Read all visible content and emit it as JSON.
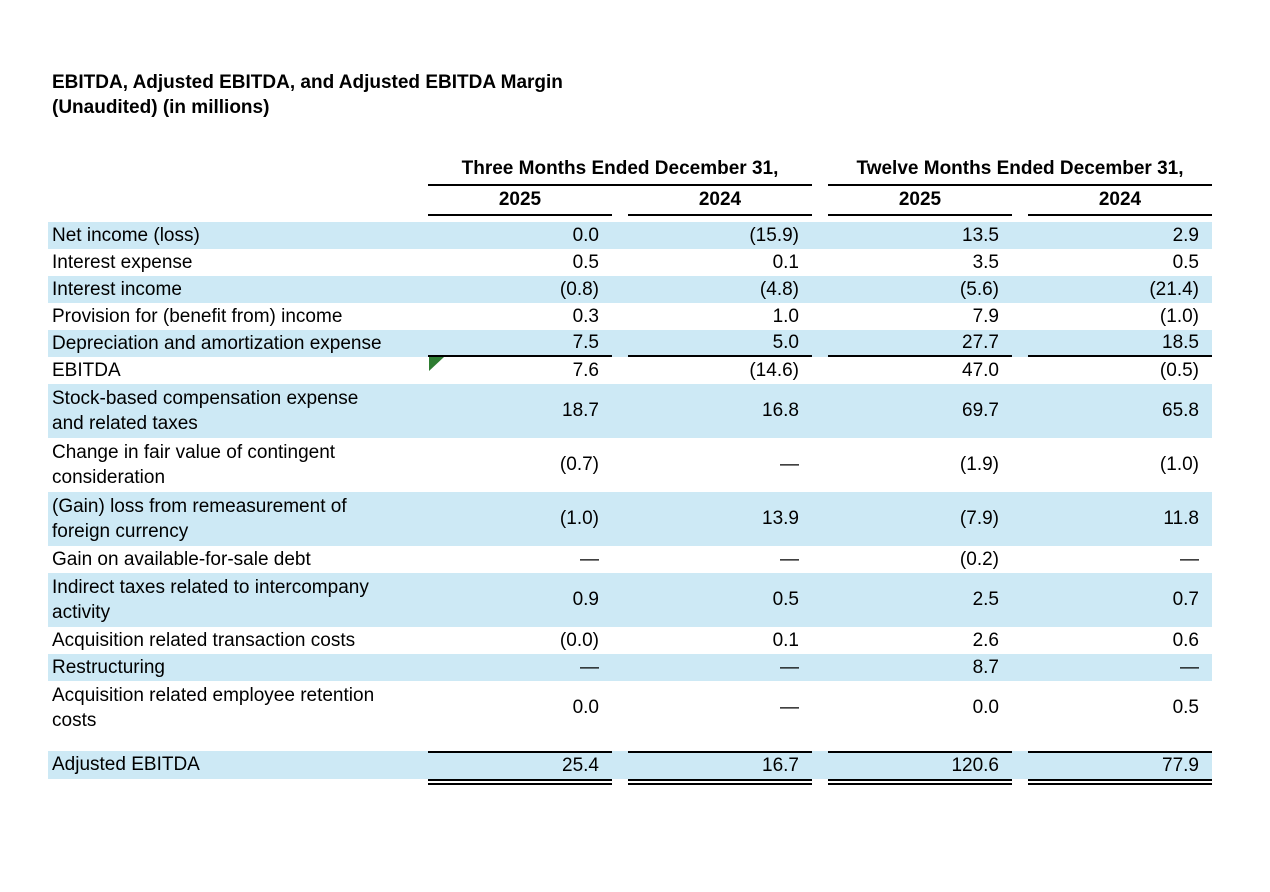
{
  "title": {
    "line1": "EBITDA, Adjusted EBITDA, and Adjusted EBITDA Margin",
    "line2": "(Unaudited) (in millions)"
  },
  "colors": {
    "row_highlight": "#cde9f5",
    "flag_green": "#2e7d32",
    "rule": "#000000"
  },
  "marker": {
    "name": "green-corner-flag",
    "row": "EBITDA",
    "column": "Three Months Ended December 31, 2025"
  },
  "table": {
    "column_groups": [
      {
        "label": "Three Months Ended December 31,",
        "years": [
          "2025",
          "2024"
        ]
      },
      {
        "label": "Twelve Months Ended December 31,",
        "years": [
          "2025",
          "2024"
        ]
      }
    ],
    "rows": [
      {
        "label": "Net income (loss)",
        "values": [
          "0.0",
          "(15.9)",
          "13.5",
          "2.9"
        ],
        "shaded": true,
        "lines": 1
      },
      {
        "label": "Interest expense",
        "values": [
          "0.5",
          "0.1",
          "3.5",
          "0.5"
        ],
        "shaded": false,
        "lines": 1
      },
      {
        "label": "Interest income",
        "values": [
          "(0.8)",
          "(4.8)",
          "(5.6)",
          "(21.4)"
        ],
        "shaded": true,
        "lines": 1
      },
      {
        "label": "Provision for (benefit from) income",
        "values": [
          "0.3",
          "1.0",
          "7.9",
          "(1.0)"
        ],
        "shaded": false,
        "lines": 1
      },
      {
        "label": "Depreciation and amortization expense",
        "values": [
          "7.5",
          "5.0",
          "27.7",
          "18.5"
        ],
        "shaded": true,
        "lines": 1,
        "rule_below": true
      },
      {
        "label": "EBITDA",
        "values": [
          "7.6",
          "(14.6)",
          "47.0",
          "(0.5)"
        ],
        "shaded": false,
        "lines": 1,
        "flag": true
      },
      {
        "label": "Stock-based compensation expense\nand related taxes",
        "values": [
          "18.7",
          "16.8",
          "69.7",
          "65.8"
        ],
        "shaded": true,
        "lines": 2
      },
      {
        "label": "Change in fair value of contingent\nconsideration",
        "values": [
          "(0.7)",
          "—",
          "(1.9)",
          "(1.0)"
        ],
        "shaded": false,
        "lines": 2
      },
      {
        "label": "(Gain) loss from remeasurement of\nforeign currency",
        "values": [
          "(1.0)",
          "13.9",
          "(7.9)",
          "11.8"
        ],
        "shaded": true,
        "lines": 2
      },
      {
        "label": "Gain on available-for-sale debt",
        "values": [
          "—",
          "—",
          "(0.2)",
          "—"
        ],
        "shaded": false,
        "lines": 1
      },
      {
        "label": "Indirect taxes related to intercompany\nactivity",
        "values": [
          "0.9",
          "0.5",
          "2.5",
          "0.7"
        ],
        "shaded": true,
        "lines": 2
      },
      {
        "label": "Acquisition related transaction costs",
        "values": [
          "(0.0)",
          "0.1",
          "2.6",
          "0.6"
        ],
        "shaded": false,
        "lines": 1
      },
      {
        "label": "Restructuring",
        "values": [
          "—",
          "—",
          "8.7",
          "—"
        ],
        "shaded": true,
        "lines": 1
      },
      {
        "label": "Acquisition related employee retention\ncosts",
        "values": [
          "0.0",
          "—",
          "0.0",
          "0.5"
        ],
        "shaded": false,
        "lines": 2
      },
      {
        "label": "Adjusted EBITDA",
        "values": [
          "25.4",
          "16.7",
          "120.6",
          "77.9"
        ],
        "shaded": true,
        "lines": 1,
        "total": true
      }
    ]
  }
}
